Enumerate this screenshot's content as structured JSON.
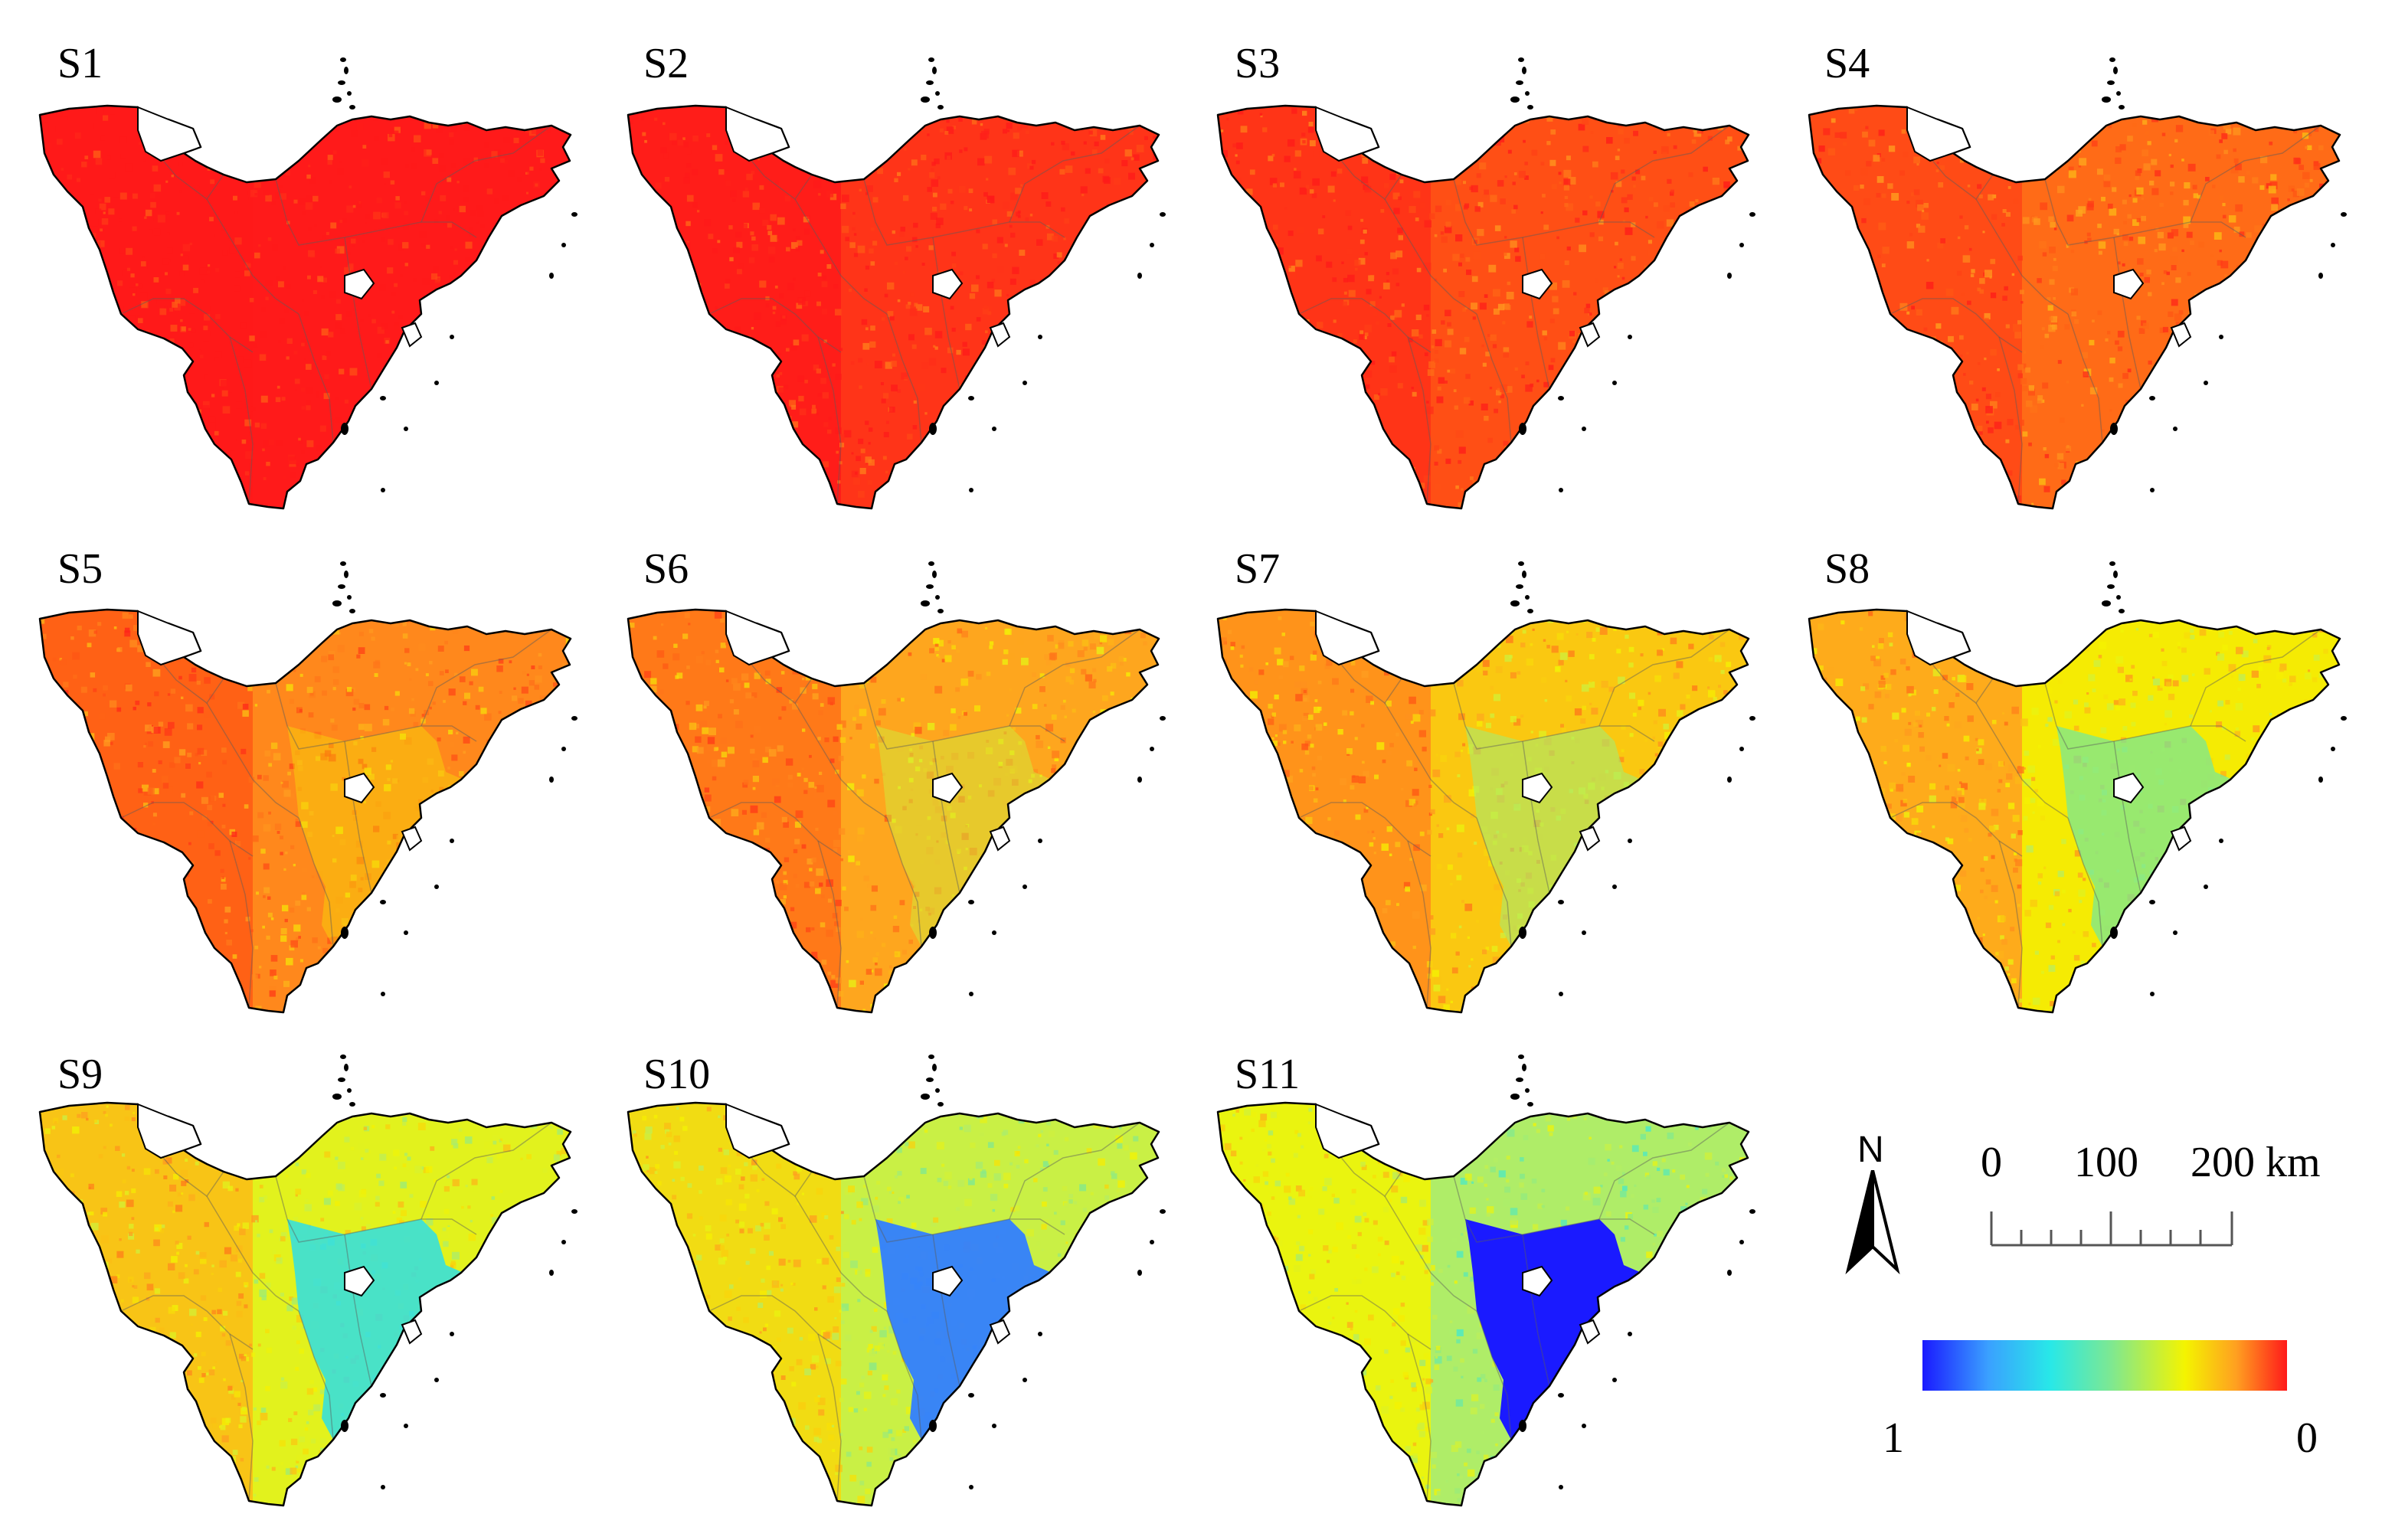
{
  "panels": [
    {
      "label": "S1",
      "level": 0.0
    },
    {
      "label": "S2",
      "level": 0.1
    },
    {
      "label": "S3",
      "level": 0.2
    },
    {
      "label": "S4",
      "level": 0.3
    },
    {
      "label": "S5",
      "level": 0.4
    },
    {
      "label": "S6",
      "level": 0.5
    },
    {
      "label": "S7",
      "level": 0.6
    },
    {
      "label": "S8",
      "level": 0.7
    },
    {
      "label": "S9",
      "level": 0.8
    },
    {
      "label": "S10",
      "level": 0.9
    },
    {
      "label": "S11",
      "level": 1.0
    }
  ],
  "legend": {
    "north": "N",
    "scale_0": "0",
    "scale_100": "100",
    "scale_200": "200 km",
    "colorbar_left": "1",
    "colorbar_right": "0"
  },
  "colors": {
    "high": "#ff1a1a",
    "mid_high": "#ffa020",
    "mid": "#f4f400",
    "mid_low": "#7fe890",
    "low": "#28e8e8",
    "lowest": "#1a1aff"
  }
}
